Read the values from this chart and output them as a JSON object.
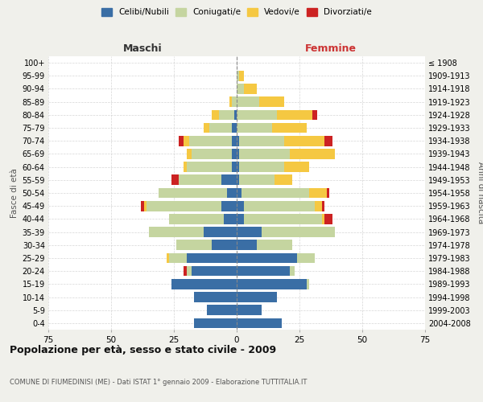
{
  "age_groups": [
    "0-4",
    "5-9",
    "10-14",
    "15-19",
    "20-24",
    "25-29",
    "30-34",
    "35-39",
    "40-44",
    "45-49",
    "50-54",
    "55-59",
    "60-64",
    "65-69",
    "70-74",
    "75-79",
    "80-84",
    "85-89",
    "90-94",
    "95-99",
    "100+"
  ],
  "birth_years": [
    "2004-2008",
    "1999-2003",
    "1994-1998",
    "1989-1993",
    "1984-1988",
    "1979-1983",
    "1974-1978",
    "1969-1973",
    "1964-1968",
    "1959-1963",
    "1954-1958",
    "1949-1953",
    "1944-1948",
    "1939-1943",
    "1934-1938",
    "1929-1933",
    "1924-1928",
    "1919-1923",
    "1914-1918",
    "1909-1913",
    "≤ 1908"
  ],
  "male": {
    "celibi": [
      17,
      12,
      17,
      26,
      18,
      20,
      10,
      13,
      5,
      6,
      4,
      6,
      2,
      2,
      2,
      2,
      1,
      0,
      0,
      0,
      0
    ],
    "coniugati": [
      0,
      0,
      0,
      0,
      2,
      7,
      14,
      22,
      22,
      30,
      27,
      17,
      18,
      16,
      17,
      9,
      6,
      2,
      0,
      0,
      0
    ],
    "vedovi": [
      0,
      0,
      0,
      0,
      0,
      1,
      0,
      0,
      0,
      1,
      0,
      0,
      1,
      2,
      2,
      2,
      3,
      1,
      0,
      0,
      0
    ],
    "divorziati": [
      0,
      0,
      0,
      0,
      1,
      0,
      0,
      0,
      0,
      1,
      0,
      3,
      0,
      0,
      2,
      0,
      0,
      0,
      0,
      0,
      0
    ]
  },
  "female": {
    "nubili": [
      18,
      10,
      16,
      28,
      21,
      24,
      8,
      10,
      3,
      3,
      2,
      1,
      1,
      1,
      1,
      0,
      0,
      0,
      0,
      0,
      0
    ],
    "coniugate": [
      0,
      0,
      0,
      1,
      2,
      7,
      14,
      29,
      31,
      28,
      27,
      14,
      18,
      20,
      18,
      14,
      16,
      9,
      3,
      1,
      0
    ],
    "vedove": [
      0,
      0,
      0,
      0,
      0,
      0,
      0,
      0,
      1,
      3,
      7,
      7,
      10,
      18,
      16,
      14,
      14,
      10,
      5,
      2,
      0
    ],
    "divorziate": [
      0,
      0,
      0,
      0,
      0,
      0,
      0,
      0,
      3,
      1,
      1,
      0,
      0,
      0,
      3,
      0,
      2,
      0,
      0,
      0,
      0
    ]
  },
  "colors": {
    "celibi": "#3a6ea5",
    "coniugati": "#c5d5a0",
    "vedovi": "#f5c842",
    "divorziati": "#cc2222"
  },
  "xlim": 75,
  "title": "Popolazione per età, sesso e stato civile - 2009",
  "subtitle": "COMUNE DI FIUMEDINISI (ME) - Dati ISTAT 1° gennaio 2009 - Elaborazione TUTTITALIA.IT",
  "xlabel_left": "Maschi",
  "xlabel_right": "Femmine",
  "ylabel_left": "Fasce di età",
  "ylabel_right": "Anni di nascita",
  "legend_labels": [
    "Celibi/Nubili",
    "Coniugati/e",
    "Vedovi/e",
    "Divorziati/e"
  ],
  "bg_color": "#f0f0eb",
  "plot_bg": "#ffffff"
}
